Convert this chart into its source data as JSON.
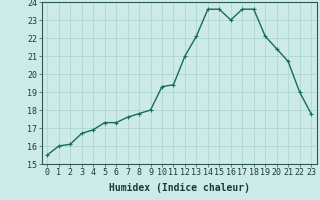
{
  "x": [
    0,
    1,
    2,
    3,
    4,
    5,
    6,
    7,
    8,
    9,
    10,
    11,
    12,
    13,
    14,
    15,
    16,
    17,
    18,
    19,
    20,
    21,
    22,
    23
  ],
  "y": [
    15.5,
    16.0,
    16.1,
    16.7,
    16.9,
    17.3,
    17.3,
    17.6,
    17.8,
    18.0,
    19.3,
    19.4,
    21.0,
    22.1,
    23.6,
    23.6,
    23.0,
    23.6,
    23.6,
    22.1,
    21.4,
    20.7,
    19.0,
    17.8
  ],
  "line_color": "#1a6b5a",
  "marker_color": "#1a6b5a",
  "bg_color": "#cceae7",
  "grid_color": "#aad4d0",
  "xlabel": "Humidex (Indice chaleur)",
  "ylim": [
    15,
    24
  ],
  "xlim": [
    -0.5,
    23.5
  ],
  "yticks": [
    15,
    16,
    17,
    18,
    19,
    20,
    21,
    22,
    23,
    24
  ],
  "xticks": [
    0,
    1,
    2,
    3,
    4,
    5,
    6,
    7,
    8,
    9,
    10,
    11,
    12,
    13,
    14,
    15,
    16,
    17,
    18,
    19,
    20,
    21,
    22,
    23
  ],
  "xlabel_fontsize": 7,
  "tick_fontsize": 6,
  "marker_size": 3,
  "line_width": 1.0
}
